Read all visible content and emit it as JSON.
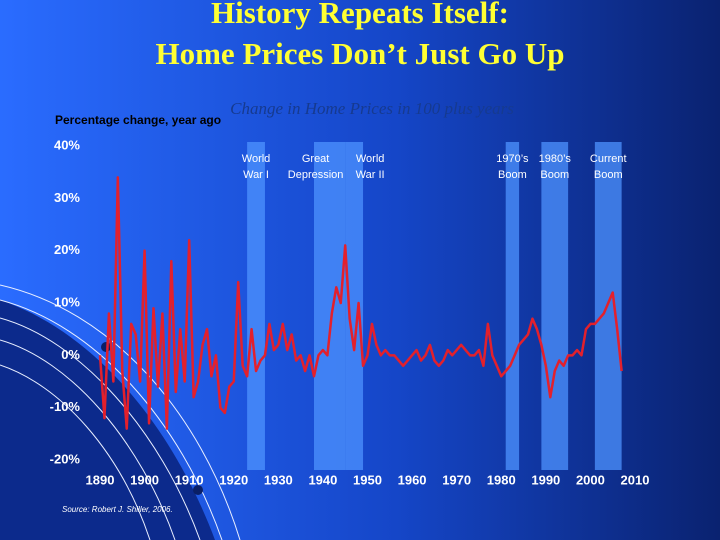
{
  "chart_data": {
    "type": "line",
    "title": [
      "History Repeats Itself:",
      "Home Prices Don’t Just Go Up"
    ],
    "subtitle": "Change in Home Prices in 100 plus years",
    "y_label": "Percentage change, year ago",
    "source": "Source: Robert J. Shiller, 2006.",
    "color": "#e3202c",
    "band_color": "#4d93ff",
    "xlim": [
      1890,
      2010
    ],
    "ylim": [
      -20,
      40
    ],
    "xticks": [
      1890,
      1900,
      1910,
      1920,
      1930,
      1940,
      1950,
      1960,
      1970,
      1980,
      1990,
      2000,
      2010
    ],
    "yticks": [
      {
        "value": 40,
        "label": "40%"
      },
      {
        "value": 30,
        "label": "30%"
      },
      {
        "value": 20,
        "label": "20%"
      },
      {
        "value": 10,
        "label": "10%"
      },
      {
        "value": 0,
        "label": "0%"
      },
      {
        "value": -10,
        "label": "-10%"
      },
      {
        "value": -20,
        "label": "-20%"
      }
    ],
    "bands": [
      {
        "label": [
          "World",
          "War I"
        ],
        "start": 1923,
        "end": 1927
      },
      {
        "label": [
          "Great",
          "Depression"
        ],
        "start": 1938,
        "end": 1945
      },
      {
        "label": [
          "World",
          "War II"
        ],
        "start": 1945,
        "end": 1949
      },
      {
        "label": [
          "1970’s",
          "Boom"
        ],
        "start": 1981,
        "end": 1984
      },
      {
        "label": [
          "1980’s",
          "Boom"
        ],
        "start": 1989,
        "end": 1995
      },
      {
        "label": [
          "Current",
          "Boom"
        ],
        "start": 2001,
        "end": 2007
      }
    ],
    "x": [
      1890,
      1891,
      1892,
      1893,
      1894,
      1895,
      1896,
      1897,
      1898,
      1899,
      1900,
      1901,
      1902,
      1903,
      1904,
      1905,
      1906,
      1907,
      1908,
      1909,
      1910,
      1911,
      1912,
      1913,
      1914,
      1915,
      1916,
      1917,
      1918,
      1919,
      1920,
      1921,
      1922,
      1923,
      1924,
      1925,
      1926,
      1927,
      1928,
      1929,
      1930,
      1931,
      1932,
      1933,
      1934,
      1935,
      1936,
      1937,
      1938,
      1939,
      1940,
      1941,
      1942,
      1943,
      1944,
      1945,
      1946,
      1947,
      1948,
      1949,
      1950,
      1951,
      1952,
      1953,
      1954,
      1955,
      1956,
      1957,
      1958,
      1959,
      1960,
      1961,
      1962,
      1963,
      1964,
      1965,
      1966,
      1967,
      1968,
      1969,
      1970,
      1971,
      1972,
      1973,
      1974,
      1975,
      1976,
      1977,
      1978,
      1979,
      1980,
      1981,
      1982,
      1983,
      1984,
      1985,
      1986,
      1987,
      1988,
      1989,
      1990,
      1991,
      1992,
      1993,
      1994,
      1995,
      1996,
      1997,
      1998,
      1999,
      2000,
      2001,
      2002,
      2003,
      2004,
      2005,
      2006,
      2007
    ],
    "values": [
      0,
      -12,
      8,
      -5,
      34,
      -3,
      -14,
      6,
      4,
      -5,
      20,
      -13,
      9,
      -6,
      8,
      -14,
      18,
      -7,
      5,
      -5,
      22,
      -8,
      -5,
      2,
      5,
      -4,
      0,
      -10,
      -11,
      -6,
      -5,
      14,
      -2,
      -4,
      5,
      -3,
      -1,
      0,
      6,
      1,
      2,
      6,
      1,
      4,
      -1,
      0,
      -3,
      0,
      -4,
      0,
      1,
      0,
      8,
      13,
      10,
      21,
      7,
      1,
      10,
      -2,
      0,
      6,
      2,
      0,
      1,
      0,
      0,
      -1,
      -2,
      -1,
      0,
      1,
      -1,
      0,
      2,
      -1,
      -2,
      -1,
      1,
      0,
      1,
      2,
      1,
      0,
      0,
      1,
      -2,
      6,
      0,
      -2,
      -4,
      -3,
      -2,
      0,
      2,
      3,
      4,
      7,
      5,
      2,
      -2,
      -8,
      -3,
      -1,
      -2,
      0,
      0,
      1,
      0,
      5,
      6,
      6,
      7,
      8,
      10,
      12,
      5,
      -3
    ]
  }
}
